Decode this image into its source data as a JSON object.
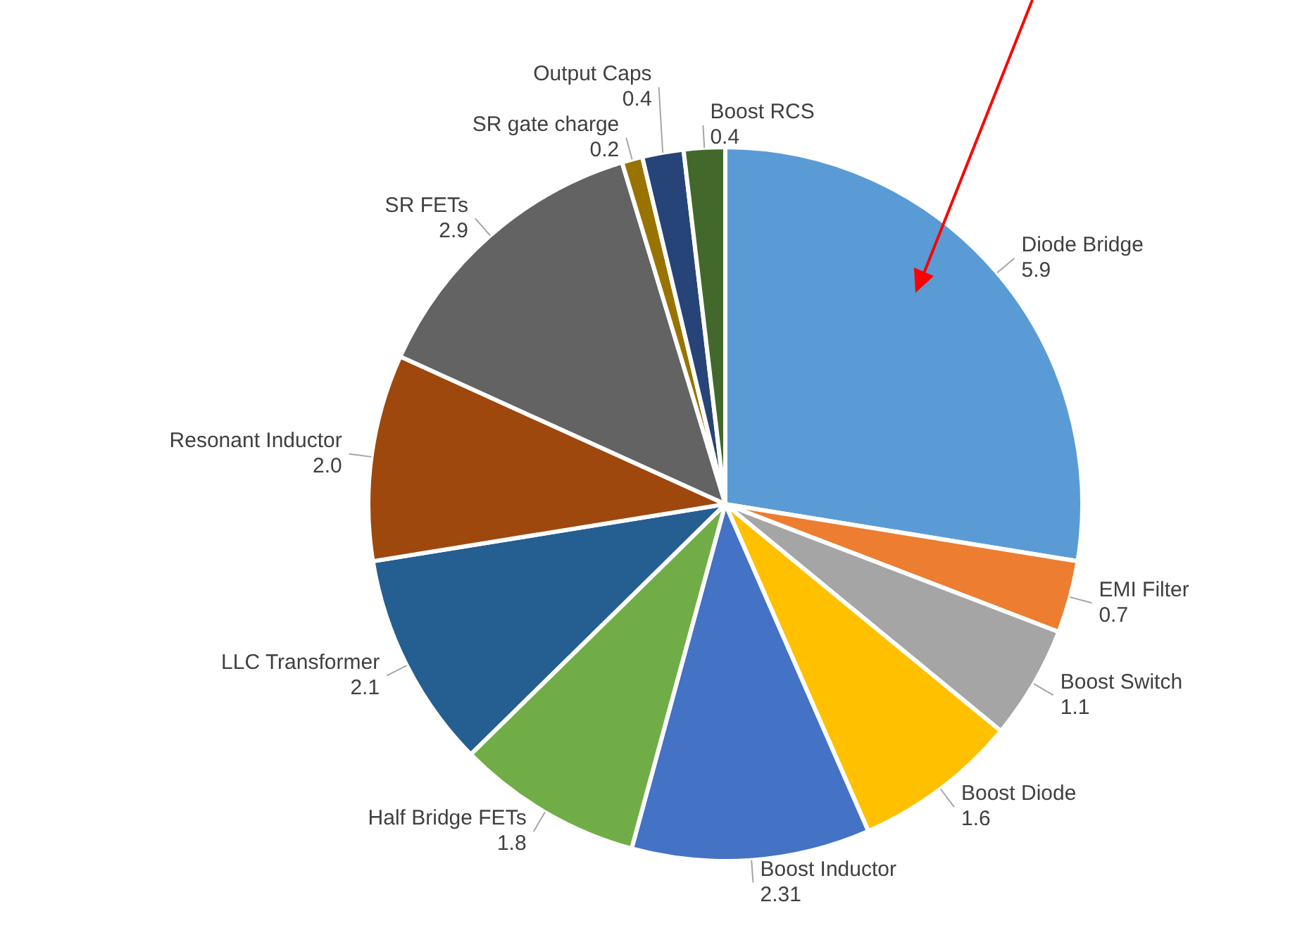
{
  "chart_data": {
    "type": "pie",
    "legend": false,
    "categories": [
      "Diode Bridge",
      "EMI Filter",
      "Boost Switch",
      "Boost Diode",
      "Boost Inductor",
      "Half Bridge FETs",
      "LLC Transformer",
      "Resonant Inductor",
      "SR FETs",
      "SR gate charge",
      "Output Caps",
      "Boost RCS"
    ],
    "values": [
      5.9,
      0.7,
      1.1,
      1.6,
      2.31,
      1.8,
      2.1,
      2.0,
      2.9,
      0.2,
      0.4,
      0.4
    ],
    "value_labels": [
      "5.9",
      "0.7",
      "1.1",
      "1.6",
      "2.31",
      "1.8",
      "2.1",
      "2.0",
      "2.9",
      "0.2",
      "0.4",
      "0.4"
    ],
    "colors": [
      "#5b9bd5",
      "#ed7d31",
      "#a5a5a5",
      "#ffc000",
      "#4472c4",
      "#70ad47",
      "#255e91",
      "#9e480e",
      "#636363",
      "#997300",
      "#264478",
      "#43682b"
    ]
  }
}
